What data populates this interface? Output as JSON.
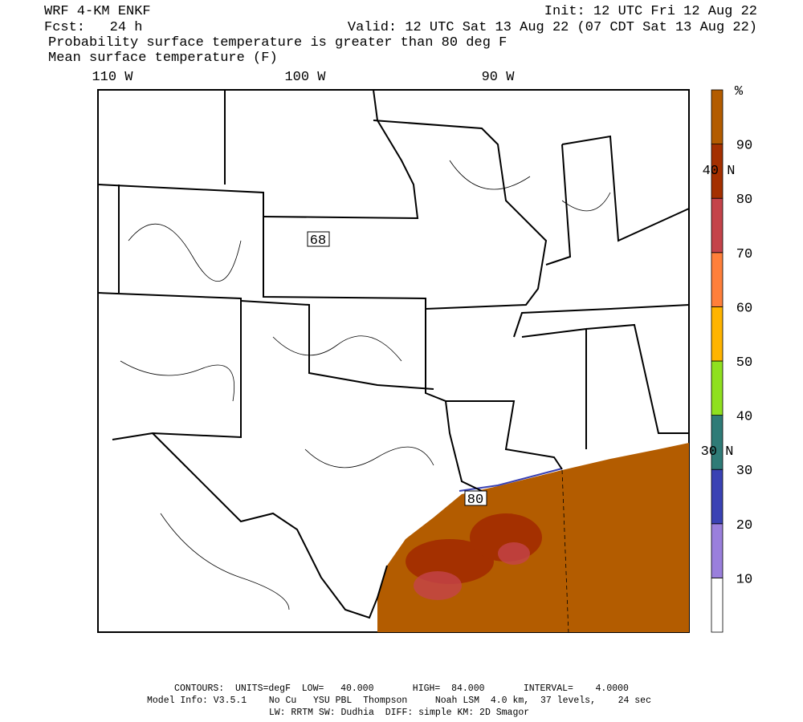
{
  "header": {
    "model": "WRF 4-KM ENKF",
    "forecast": "Fcst:   24 h",
    "init": "Init: 12 UTC Fri 12 Aug 22",
    "valid": "Valid: 12 UTC Sat 13 Aug 22 (07 CDT Sat 13 Aug 22)",
    "field1": "Probability surface temperature is greater than 80 deg F",
    "field2": "Mean surface temperature (F)"
  },
  "map": {
    "lon_labels": [
      "110 W",
      "100 W",
      "90 W"
    ],
    "lat_labels": [
      "40 N",
      "30 N"
    ],
    "contour_labels": [
      68,
      80
    ]
  },
  "colorbar": {
    "unit": "%",
    "levels": [
      10,
      20,
      30,
      40,
      50,
      60,
      70,
      80,
      90
    ],
    "colors": [
      "#ffffff",
      "#9a7fdc",
      "#3a42b4",
      "#2f7b77",
      "#8fe01f",
      "#ffb400",
      "#ff7f3a",
      "#c4434a",
      "#a43000",
      "#b35c00"
    ]
  },
  "footer": {
    "contours": "CONTOURS:  UNITS=degF  LOW=   40.000       HIGH=  84.000       INTERVAL=    4.0000",
    "model_info": "Model Info: V3.5.1    No Cu   YSU PBL  Thompson     Noah LSM  4.0 km,  37 levels,    24 sec",
    "physics": "LW: RRTM SW: Dudhia  DIFF: simple KM: 2D Smagor"
  }
}
